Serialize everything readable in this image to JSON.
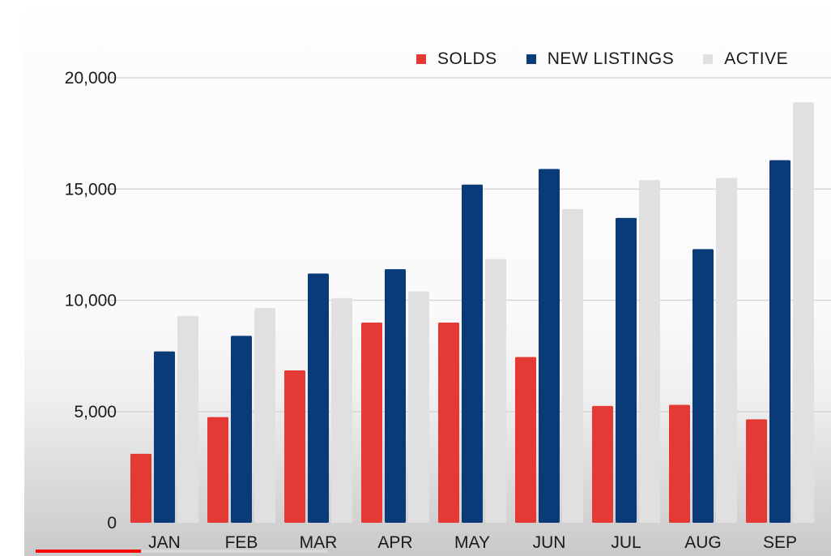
{
  "colors": {
    "solds": "#e53935",
    "new_listings": "#0a3a78",
    "active": "#e0e0e0",
    "grid": "#d6d6d6"
  },
  "legend": [
    {
      "label": "SOLDS",
      "color_key": "solds"
    },
    {
      "label": "NEW LISTINGS",
      "color_key": "new_listings"
    },
    {
      "label": "ACTIVE",
      "color_key": "active"
    }
  ],
  "video_progress": 0.36,
  "chart_data": {
    "type": "bar",
    "categories": [
      "JAN",
      "FEB",
      "MAR",
      "APR",
      "MAY",
      "JUN",
      "JUL",
      "AUG",
      "SEP"
    ],
    "series": [
      {
        "name": "SOLDS",
        "values": [
          3100,
          4750,
          6850,
          9000,
          9000,
          7450,
          5250,
          5300,
          4650
        ]
      },
      {
        "name": "NEW LISTINGS",
        "values": [
          7700,
          8400,
          11200,
          11400,
          15200,
          15900,
          13700,
          12300,
          16300
        ]
      },
      {
        "name": "ACTIVE",
        "values": [
          9300,
          9650,
          10100,
          10400,
          11850,
          14100,
          15400,
          15500,
          18900
        ]
      }
    ],
    "yticks": [
      "0",
      "5,000",
      "10,000",
      "15,000",
      "20,000"
    ],
    "ytick_values": [
      0,
      5000,
      10000,
      15000,
      20000
    ],
    "ylim": [
      0,
      20000
    ],
    "grid": true,
    "legend_position": "top-right"
  }
}
